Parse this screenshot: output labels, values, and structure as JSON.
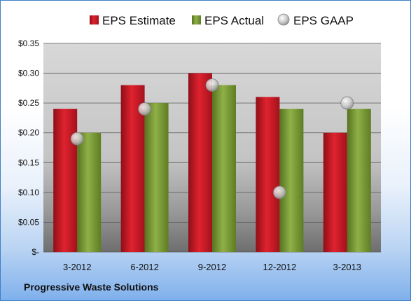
{
  "footer": {
    "company": "Progressive Waste Solutions"
  },
  "colors": {
    "estimate": "#d31d2a",
    "actual": "#7fa23a",
    "gaap": "#b8b8b8"
  },
  "chart_data": {
    "type": "bar",
    "categories": [
      "3-2012",
      "6-2012",
      "9-2012",
      "12-2012",
      "3-2013"
    ],
    "series": [
      {
        "name": "EPS Estimate",
        "kind": "bar",
        "values": [
          0.24,
          0.28,
          0.3,
          0.26,
          0.2
        ]
      },
      {
        "name": "EPS Actual",
        "kind": "bar",
        "values": [
          0.2,
          0.25,
          0.28,
          0.24,
          0.24
        ]
      },
      {
        "name": "EPS GAAP",
        "kind": "scatter",
        "values": [
          0.19,
          0.24,
          0.28,
          0.1,
          0.25
        ]
      }
    ],
    "ylim": [
      0,
      0.35
    ],
    "yticks": [
      0,
      0.05,
      0.1,
      0.15,
      0.2,
      0.25,
      0.3,
      0.35
    ],
    "ytick_labels": [
      "$-",
      "$0.05",
      "$0.10",
      "$0.15",
      "$0.20",
      "$0.25",
      "$0.30",
      "$0.35"
    ],
    "grid": true,
    "legend": "top"
  }
}
